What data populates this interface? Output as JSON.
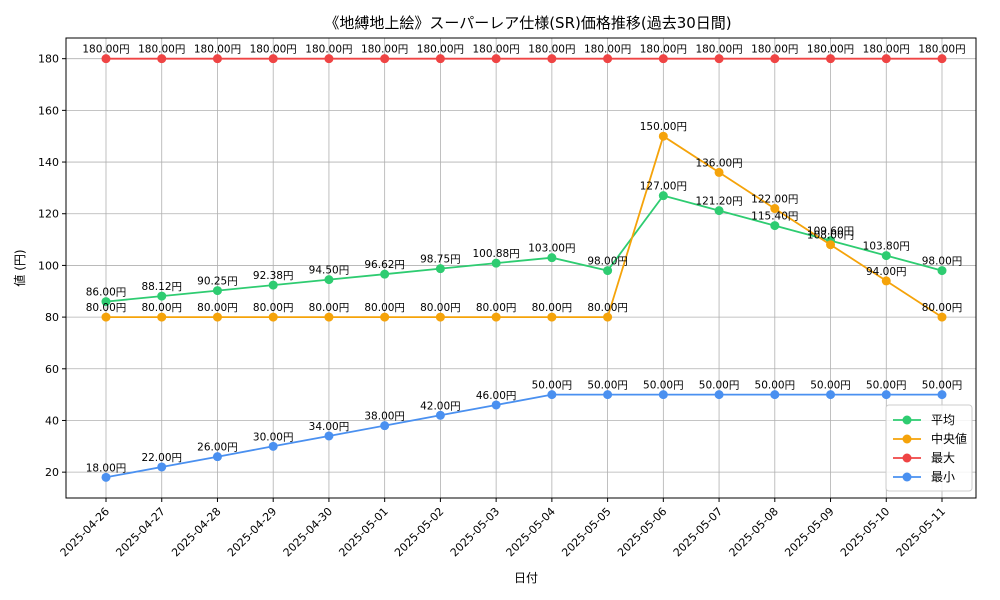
{
  "chart_data": {
    "type": "line",
    "title": "《地縛地上絵》スーパーレア仕様(SR)価格推移(過去30日間)",
    "xlabel": "日付",
    "ylabel": "値 (円)",
    "ylim": [
      10,
      188
    ],
    "yticks": [
      20,
      40,
      60,
      80,
      100,
      120,
      140,
      160,
      180
    ],
    "grid": true,
    "legend_position": "lower-right",
    "categories": [
      "2025-04-26",
      "2025-04-27",
      "2025-04-28",
      "2025-04-29",
      "2025-04-30",
      "2025-05-01",
      "2025-05-02",
      "2025-05-03",
      "2025-05-04",
      "2025-05-05",
      "2025-05-06",
      "2025-05-07",
      "2025-05-08",
      "2025-05-09",
      "2025-05-10",
      "2025-05-11"
    ],
    "series": [
      {
        "name": "平均",
        "color": "#2ecc71",
        "values": [
          86.0,
          88.12,
          90.25,
          92.38,
          94.5,
          96.62,
          98.75,
          100.88,
          103.0,
          98.0,
          127.0,
          121.2,
          115.4,
          109.6,
          103.8,
          98.0
        ],
        "labels": [
          "86.00円",
          "88.12円",
          "90.25円",
          "92.38円",
          "94.50円",
          "96.62円",
          "98.75円",
          "100.88円",
          "103.00円",
          "98.00円",
          "127.00円",
          "121.20円",
          "115.40円",
          "109.60円",
          "103.80円",
          "98.00円"
        ]
      },
      {
        "name": "中央値",
        "color": "#f5a30a",
        "values": [
          80.0,
          80.0,
          80.0,
          80.0,
          80.0,
          80.0,
          80.0,
          80.0,
          80.0,
          80.0,
          150.0,
          136.0,
          122.0,
          108.0,
          94.0,
          80.0
        ],
        "labels": [
          "80.00円",
          "80.00円",
          "80.00円",
          "80.00円",
          "80.00円",
          "80.00円",
          "80.00円",
          "80.00円",
          "80.00円",
          "80.00円",
          "150.00円",
          "136.00円",
          "122.00円",
          "108.00円",
          "94.00円",
          "80.00円"
        ]
      },
      {
        "name": "最大",
        "color": "#ef4444",
        "values": [
          180.0,
          180.0,
          180.0,
          180.0,
          180.0,
          180.0,
          180.0,
          180.0,
          180.0,
          180.0,
          180.0,
          180.0,
          180.0,
          180.0,
          180.0,
          180.0
        ],
        "labels": [
          "180.00円",
          "180.00円",
          "180.00円",
          "180.00円",
          "180.00円",
          "180.00円",
          "180.00円",
          "180.00円",
          "180.00円",
          "180.00円",
          "180.00円",
          "180.00円",
          "180.00円",
          "180.00円",
          "180.00円",
          "180.00円"
        ]
      },
      {
        "name": "最小",
        "color": "#4a90f0",
        "values": [
          18.0,
          22.0,
          26.0,
          30.0,
          34.0,
          38.0,
          42.0,
          46.0,
          50.0,
          50.0,
          50.0,
          50.0,
          50.0,
          50.0,
          50.0,
          50.0
        ],
        "labels": [
          "18.00円",
          "22.00円",
          "26.00円",
          "30.00円",
          "34.00円",
          "38.00円",
          "42.00円",
          "46.00円",
          "50.00円",
          "50.00円",
          "50.00円",
          "50.00円",
          "50.00円",
          "50.00円",
          "50.00円",
          "50.00円"
        ]
      }
    ]
  }
}
